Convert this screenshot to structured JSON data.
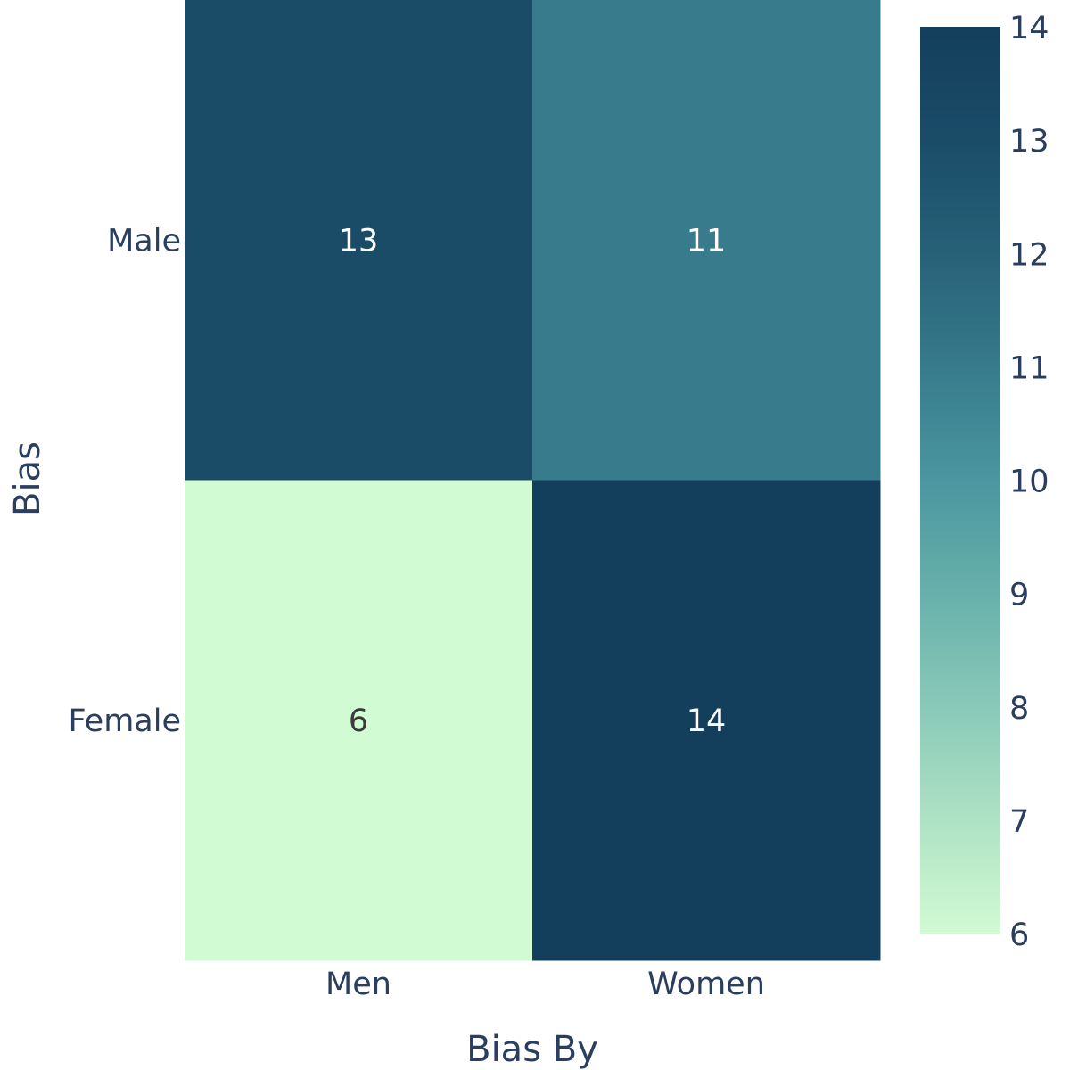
{
  "chart_data": {
    "type": "heatmap",
    "x": [
      "Men",
      "Women"
    ],
    "y": [
      "Male",
      "Female"
    ],
    "z": [
      [
        13,
        11
      ],
      [
        6,
        14
      ]
    ],
    "xlabel": "Bias By",
    "ylabel": "Bias",
    "colorbar": {
      "range": [
        6,
        14
      ],
      "ticks": [
        "6",
        "7",
        "8",
        "9",
        "10",
        "11",
        "12",
        "13",
        "14"
      ],
      "colorscale": [
        "#d1fbd2",
        "#aee2c4",
        "#89c9b8",
        "#67b0ab",
        "#4b96a0",
        "#377b8c",
        "#276178",
        "#1a4c68",
        "#133f5c"
      ]
    },
    "grid": false
  }
}
